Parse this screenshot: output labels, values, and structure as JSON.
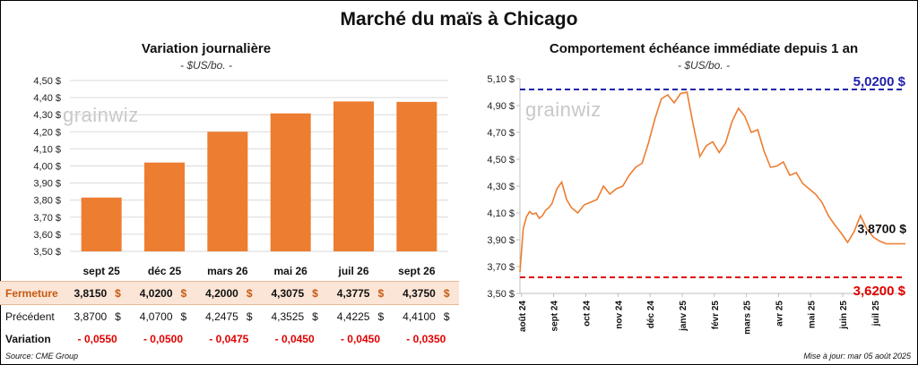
{
  "title": "Marché du maïs à Chicago",
  "watermark": "grainwiz",
  "left": {
    "title": "Variation journalière",
    "unit": "- $US/bo. -"
  },
  "right": {
    "title": "Comportement échéance immédiate depuis 1 an",
    "unit": "- $US/bo. -"
  },
  "table": {
    "rows": [
      {
        "label": "Fermeture",
        "values": [
          "3,8150",
          "4,0200",
          "4,2000",
          "4,3075",
          "4,3775",
          "4,3750"
        ],
        "suffix": "$"
      },
      {
        "label": "Précédent",
        "values": [
          "3,8700",
          "4,0700",
          "4,2475",
          "4,3525",
          "4,4225",
          "4,4100"
        ],
        "suffix": "$"
      },
      {
        "label": "Variation",
        "values": [
          "- 0,0550",
          "- 0,0500",
          "- 0,0475",
          "- 0,0450",
          "- 0,0450",
          "- 0,0350"
        ],
        "suffix": ""
      }
    ]
  },
  "source": "Source: CME Group",
  "updated": "Mise à jour: mar 05 août 2025",
  "colors": {
    "bar": "#ed7d31",
    "line": "#ed7d31",
    "high": "#2222aa",
    "low": "#e00000"
  },
  "chart_data": [
    {
      "type": "bar",
      "title": "Variation journalière",
      "unit": "$US/bo.",
      "categories": [
        "sept 25",
        "déc 25",
        "mars 26",
        "mai 26",
        "juil 26",
        "sept 26"
      ],
      "values": [
        3.815,
        4.02,
        4.2,
        4.3075,
        4.3775,
        4.375
      ],
      "ylim": [
        3.5,
        4.5
      ],
      "yticks": [
        "3,50 $",
        "3,60 $",
        "3,70 $",
        "3,80 $",
        "3,90 $",
        "4,00 $",
        "4,10 $",
        "4,20 $",
        "4,30 $",
        "4,40 $",
        "4,50 $"
      ]
    },
    {
      "type": "line",
      "title": "Comportement échéance immédiate depuis 1 an",
      "unit": "$US/bo.",
      "ylim": [
        3.5,
        5.1
      ],
      "yticks": [
        "3,50 $",
        "3,70 $",
        "3,90 $",
        "4,10 $",
        "4,30 $",
        "4,50 $",
        "4,70 $",
        "4,90 $",
        "5,10 $"
      ],
      "xticks": [
        "août 24",
        "sept 24",
        "oct 24",
        "nov 24",
        "déc 24",
        "janv 25",
        "févr 25",
        "mars 25",
        "avr 25",
        "mai 25",
        "juin 25",
        "juil 25"
      ],
      "high": {
        "value": 5.02,
        "label": "5,0200 $"
      },
      "low": {
        "value": 3.62,
        "label": "3,6200 $"
      },
      "last": {
        "value": 3.87,
        "label": "3,8700 $"
      },
      "series": [
        {
          "x": [
            0,
            0.1,
            0.2,
            0.3,
            0.4,
            0.5,
            0.6,
            0.7,
            0.8,
            0.9,
            1.0,
            1.15,
            1.3,
            1.45,
            1.6,
            1.8,
            2.0,
            2.2,
            2.4,
            2.6,
            2.8,
            3.0,
            3.2,
            3.4,
            3.6,
            3.8,
            4.0,
            4.2,
            4.4,
            4.6,
            4.8,
            5.0,
            5.2,
            5.4,
            5.6,
            5.8,
            6.0,
            6.2,
            6.4,
            6.6,
            6.8,
            7.0,
            7.2,
            7.4,
            7.6,
            7.8,
            8.0,
            8.2,
            8.4,
            8.6,
            8.8,
            9.0,
            9.2,
            9.4,
            9.6,
            9.8,
            10.0,
            10.2,
            10.4,
            10.6,
            10.8,
            11.0,
            11.2,
            11.4,
            11.6,
            11.8,
            12.0
          ],
          "y": [
            3.66,
            3.98,
            4.07,
            4.11,
            4.09,
            4.1,
            4.06,
            4.08,
            4.12,
            4.14,
            4.17,
            4.28,
            4.33,
            4.2,
            4.14,
            4.1,
            4.16,
            4.18,
            4.2,
            4.3,
            4.24,
            4.28,
            4.3,
            4.38,
            4.44,
            4.47,
            4.62,
            4.8,
            4.95,
            4.98,
            4.92,
            4.99,
            5.0,
            4.75,
            4.52,
            4.6,
            4.63,
            4.55,
            4.62,
            4.78,
            4.88,
            4.82,
            4.7,
            4.72,
            4.56,
            4.44,
            4.45,
            4.48,
            4.38,
            4.4,
            4.32,
            4.28,
            4.24,
            4.18,
            4.08,
            4.01,
            3.95,
            3.88,
            3.96,
            4.08,
            3.98,
            3.92,
            3.89,
            3.87,
            3.87,
            3.87,
            3.87
          ]
        }
      ]
    }
  ]
}
